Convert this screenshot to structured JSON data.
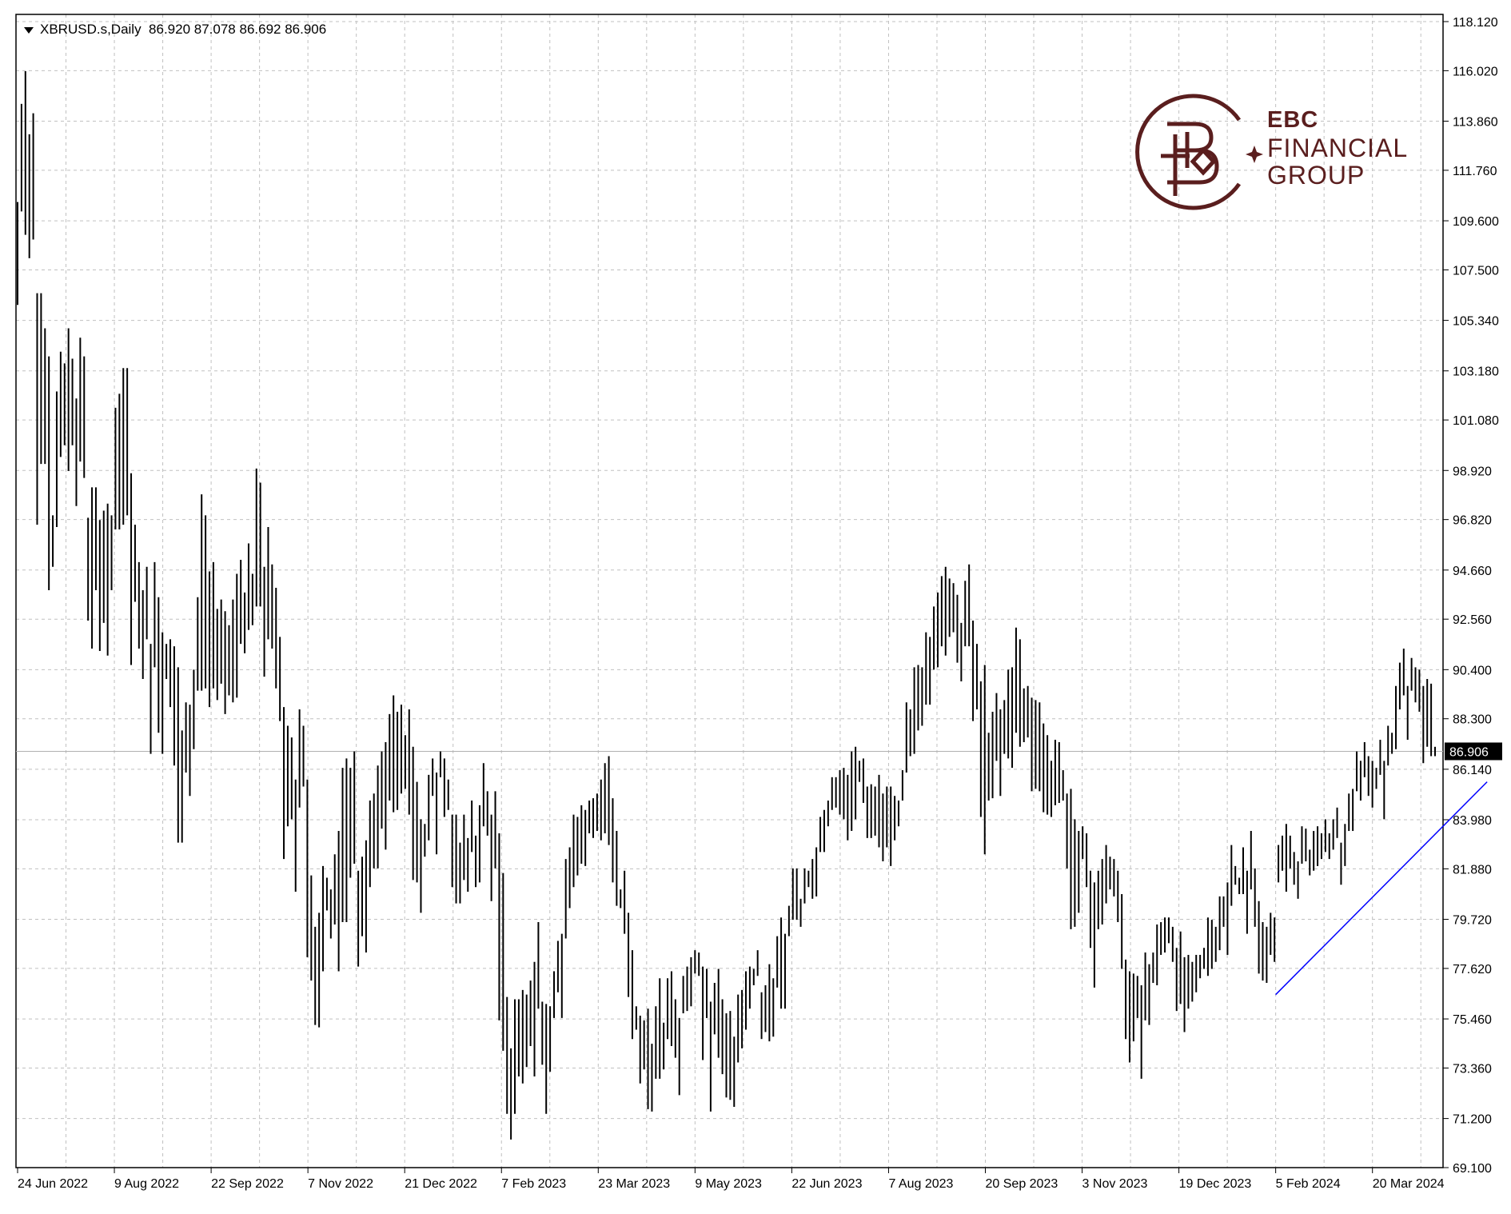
{
  "header": {
    "symbol": "XBRUSD.s,Daily",
    "ohlc": "86.920 87.078 86.692 86.906"
  },
  "logo": {
    "line1": "EBC",
    "line2": "FINANCIAL",
    "line3": "GROUP",
    "color": "#5a1e1e"
  },
  "colors": {
    "bars": "#000000",
    "grid": "#c0c0c0",
    "trendline": "#0000ff",
    "price_label_bg": "#000000"
  },
  "chart_data": {
    "type": "ohlc",
    "title": "",
    "xlabel": "",
    "ylabel": "",
    "ylim": [
      69.1,
      118.12
    ],
    "grid": true,
    "y_ticks": [
      "118.120",
      "116.020",
      "113.860",
      "111.760",
      "109.600",
      "107.500",
      "105.340",
      "103.180",
      "101.080",
      "98.920",
      "96.820",
      "94.660",
      "92.560",
      "90.400",
      "88.300",
      "86.140",
      "83.980",
      "81.880",
      "79.720",
      "77.620",
      "75.460",
      "73.360",
      "71.200",
      "69.100"
    ],
    "x_ticks": [
      "24 Jun 2022",
      "9 Aug 2022",
      "22 Sep 2022",
      "7 Nov 2022",
      "21 Dec 2022",
      "7 Feb 2023",
      "23 Mar 2023",
      "9 May 2023",
      "22 Jun 2023",
      "7 Aug 2023",
      "20 Sep 2023",
      "3 Nov 2023",
      "19 Dec 2023",
      "5 Feb 2024",
      "20 Mar 2024"
    ],
    "last_price": 86.906,
    "last_price_label": "86.906",
    "trendline": {
      "start": [
        "2024-02-05",
        76.5
      ],
      "end": [
        "2024-04-19",
        85.6
      ]
    },
    "bars": [
      [
        106.0,
        110.4
      ],
      [
        110.0,
        114.6
      ],
      [
        109.0,
        116.0
      ],
      [
        108.0,
        113.3
      ],
      [
        108.8,
        114.2
      ],
      [
        96.6,
        106.5
      ],
      [
        99.2,
        106.5
      ],
      [
        99.2,
        105.0
      ],
      [
        93.8,
        103.8
      ],
      [
        94.8,
        97.0
      ],
      [
        96.5,
        102.3
      ],
      [
        99.5,
        104.0
      ],
      [
        100.0,
        103.5
      ],
      [
        98.9,
        105.0
      ],
      [
        100.0,
        103.7
      ],
      [
        97.4,
        102.0
      ],
      [
        99.3,
        104.6
      ],
      [
        98.6,
        103.8
      ],
      [
        92.5,
        96.9
      ],
      [
        91.3,
        98.2
      ],
      [
        93.8,
        98.2
      ],
      [
        91.2,
        96.8
      ],
      [
        92.4,
        97.2
      ],
      [
        91.0,
        97.5
      ],
      [
        93.8,
        97.0
      ],
      [
        96.4,
        101.6
      ],
      [
        96.4,
        102.2
      ],
      [
        96.6,
        103.3
      ],
      [
        97.0,
        103.3
      ],
      [
        90.6,
        98.8
      ],
      [
        93.3,
        96.6
      ],
      [
        91.3,
        95.0
      ],
      [
        90.0,
        93.8
      ],
      [
        91.7,
        94.8
      ],
      [
        86.8,
        91.5
      ],
      [
        90.5,
        95.0
      ],
      [
        87.7,
        93.5
      ],
      [
        86.8,
        92.0
      ],
      [
        90.0,
        91.5
      ],
      [
        88.8,
        91.7
      ],
      [
        86.3,
        91.4
      ],
      [
        83.0,
        90.5
      ],
      [
        83.0,
        87.8
      ],
      [
        86.0,
        89.0
      ],
      [
        85.0,
        88.9
      ],
      [
        87.0,
        90.4
      ],
      [
        89.5,
        93.5
      ],
      [
        89.5,
        97.9
      ],
      [
        89.6,
        97.0
      ],
      [
        88.8,
        94.6
      ],
      [
        89.6,
        95.0
      ],
      [
        89.1,
        93.0
      ],
      [
        89.8,
        93.4
      ],
      [
        88.5,
        92.9
      ],
      [
        89.3,
        92.3
      ],
      [
        89.0,
        93.4
      ],
      [
        89.2,
        94.5
      ],
      [
        91.5,
        95.1
      ],
      [
        91.1,
        93.7
      ],
      [
        92.1,
        95.8
      ],
      [
        92.3,
        94.5
      ],
      [
        93.1,
        99.0
      ],
      [
        93.1,
        98.4
      ],
      [
        90.1,
        94.8
      ],
      [
        91.7,
        96.5
      ],
      [
        91.3,
        94.9
      ],
      [
        89.6,
        93.9
      ],
      [
        88.2,
        91.8
      ],
      [
        82.3,
        88.8
      ],
      [
        83.7,
        88.0
      ],
      [
        84.0,
        87.5
      ],
      [
        80.9,
        85.7
      ],
      [
        84.5,
        88.7
      ],
      [
        85.4,
        88.0
      ],
      [
        78.1,
        85.7
      ],
      [
        77.1,
        81.6
      ],
      [
        75.2,
        79.4
      ],
      [
        75.1,
        80.0
      ],
      [
        77.5,
        82.0
      ],
      [
        80.1,
        81.5
      ],
      [
        78.9,
        81.0
      ],
      [
        79.5,
        82.5
      ],
      [
        77.5,
        83.5
      ],
      [
        79.6,
        86.2
      ],
      [
        79.6,
        86.6
      ],
      [
        81.5,
        86.2
      ],
      [
        82.1,
        86.9
      ],
      [
        77.7,
        81.8
      ],
      [
        79.0,
        82.4
      ],
      [
        78.3,
        83.1
      ],
      [
        81.1,
        84.8
      ],
      [
        81.9,
        85.1
      ],
      [
        81.9,
        86.3
      ],
      [
        83.6,
        86.9
      ],
      [
        82.7,
        87.3
      ],
      [
        84.8,
        88.5
      ],
      [
        84.3,
        89.3
      ],
      [
        84.4,
        88.6
      ],
      [
        85.1,
        88.9
      ],
      [
        85.3,
        87.6
      ],
      [
        84.2,
        88.7
      ],
      [
        81.4,
        87.1
      ],
      [
        81.3,
        85.6
      ],
      [
        80.0,
        84.0
      ],
      [
        82.4,
        83.8
      ],
      [
        83.1,
        85.9
      ],
      [
        85.0,
        86.6
      ],
      [
        82.5,
        86.0
      ],
      [
        85.8,
        86.9
      ],
      [
        84.1,
        86.6
      ],
      [
        84.4,
        85.7
      ],
      [
        81.1,
        84.2
      ],
      [
        80.4,
        84.2
      ],
      [
        80.4,
        83.0
      ],
      [
        81.4,
        84.2
      ],
      [
        80.9,
        83.2
      ],
      [
        82.6,
        84.8
      ],
      [
        81.1,
        83.3
      ],
      [
        81.3,
        84.6
      ],
      [
        83.7,
        86.4
      ],
      [
        83.3,
        85.2
      ],
      [
        80.5,
        84.2
      ],
      [
        81.9,
        85.2
      ],
      [
        75.4,
        83.4
      ],
      [
        74.1,
        81.7
      ],
      [
        71.4,
        76.4
      ],
      [
        70.3,
        74.2
      ],
      [
        71.4,
        76.3
      ],
      [
        73.0,
        76.3
      ],
      [
        72.7,
        76.7
      ],
      [
        73.4,
        76.5
      ],
      [
        74.3,
        77.1
      ],
      [
        73.0,
        77.9
      ],
      [
        75.9,
        79.6
      ],
      [
        73.5,
        76.2
      ],
      [
        71.4,
        76.1
      ],
      [
        73.2,
        76.0
      ],
      [
        75.5,
        77.5
      ],
      [
        76.6,
        78.8
      ],
      [
        75.5,
        79.1
      ],
      [
        78.9,
        82.3
      ],
      [
        80.2,
        82.8
      ],
      [
        81.1,
        84.2
      ],
      [
        81.6,
        84.1
      ],
      [
        82.1,
        84.6
      ],
      [
        82.0,
        84.4
      ],
      [
        83.4,
        84.8
      ],
      [
        83.2,
        84.9
      ],
      [
        83.5,
        85.1
      ],
      [
        83.1,
        85.7
      ],
      [
        83.4,
        86.4
      ],
      [
        82.9,
        86.7
      ],
      [
        81.3,
        84.9
      ],
      [
        80.3,
        83.5
      ],
      [
        80.2,
        81.0
      ],
      [
        79.1,
        81.8
      ],
      [
        76.4,
        80.0
      ],
      [
        74.6,
        78.4
      ],
      [
        75.0,
        76.0
      ],
      [
        72.7,
        75.6
      ],
      [
        73.3,
        75.4
      ],
      [
        71.6,
        75.9
      ],
      [
        71.5,
        74.4
      ],
      [
        72.9,
        76.0
      ],
      [
        72.9,
        77.2
      ],
      [
        73.3,
        75.3
      ],
      [
        74.6,
        77.2
      ],
      [
        74.3,
        77.5
      ],
      [
        73.8,
        76.3
      ],
      [
        72.2,
        75.5
      ],
      [
        75.7,
        77.3
      ],
      [
        75.8,
        77.7
      ],
      [
        76.0,
        78.1
      ],
      [
        77.4,
        78.4
      ],
      [
        77.3,
        78.3
      ],
      [
        73.7,
        77.7
      ],
      [
        75.5,
        77.6
      ],
      [
        71.5,
        76.2
      ],
      [
        74.8,
        77.0
      ],
      [
        73.8,
        77.6
      ],
      [
        73.1,
        76.3
      ],
      [
        72.1,
        75.7
      ],
      [
        72.0,
        75.8
      ],
      [
        71.7,
        74.7
      ],
      [
        73.6,
        76.5
      ],
      [
        74.2,
        76.7
      ],
      [
        75.0,
        77.5
      ],
      [
        75.9,
        77.7
      ],
      [
        76.9,
        77.6
      ],
      [
        77.3,
        78.4
      ],
      [
        74.6,
        76.6
      ],
      [
        74.9,
        76.9
      ],
      [
        74.5,
        77.8
      ],
      [
        74.7,
        77.2
      ],
      [
        76.8,
        79.0
      ],
      [
        75.9,
        79.8
      ],
      [
        75.9,
        79.1
      ],
      [
        79.0,
        80.3
      ],
      [
        79.7,
        81.9
      ],
      [
        79.7,
        81.9
      ],
      [
        79.4,
        80.6
      ],
      [
        80.4,
        81.9
      ],
      [
        81.1,
        81.8
      ],
      [
        80.6,
        82.3
      ],
      [
        80.7,
        82.8
      ],
      [
        82.6,
        84.1
      ],
      [
        82.6,
        84.4
      ],
      [
        83.7,
        84.8
      ],
      [
        84.4,
        85.8
      ],
      [
        84.5,
        85.8
      ],
      [
        84.2,
        86.1
      ],
      [
        84.0,
        86.2
      ],
      [
        83.1,
        85.9
      ],
      [
        83.5,
        86.9
      ],
      [
        84.0,
        87.1
      ],
      [
        85.6,
        86.5
      ],
      [
        84.7,
        86.6
      ],
      [
        83.2,
        85.4
      ],
      [
        83.2,
        85.5
      ],
      [
        83.3,
        85.4
      ],
      [
        82.8,
        85.9
      ],
      [
        82.2,
        85.1
      ],
      [
        82.8,
        85.4
      ],
      [
        82.0,
        85.4
      ],
      [
        83.1,
        85.0
      ],
      [
        83.7,
        84.8
      ],
      [
        84.8,
        86.1
      ],
      [
        86.0,
        89.0
      ],
      [
        86.7,
        88.7
      ],
      [
        86.8,
        90.5
      ],
      [
        87.8,
        90.6
      ],
      [
        88.0,
        90.5
      ],
      [
        88.9,
        92.0
      ],
      [
        88.9,
        91.8
      ],
      [
        90.4,
        93.1
      ],
      [
        90.5,
        93.7
      ],
      [
        91.4,
        94.4
      ],
      [
        91.0,
        94.8
      ],
      [
        91.8,
        94.3
      ],
      [
        92.0,
        94.1
      ],
      [
        90.7,
        93.6
      ],
      [
        89.9,
        92.4
      ],
      [
        91.4,
        94.2
      ],
      [
        91.4,
        94.9
      ],
      [
        88.2,
        92.5
      ],
      [
        88.7,
        91.5
      ],
      [
        84.1,
        89.9
      ],
      [
        82.5,
        90.6
      ],
      [
        84.8,
        87.7
      ],
      [
        84.9,
        88.6
      ],
      [
        86.5,
        89.4
      ],
      [
        85.0,
        88.7
      ],
      [
        86.8,
        89.1
      ],
      [
        86.6,
        90.4
      ],
      [
        86.2,
        90.5
      ],
      [
        87.7,
        92.2
      ],
      [
        87.1,
        91.7
      ],
      [
        87.3,
        89.6
      ],
      [
        87.5,
        89.7
      ],
      [
        85.2,
        89.2
      ],
      [
        85.3,
        89.1
      ],
      [
        85.2,
        89.0
      ],
      [
        84.3,
        88.1
      ],
      [
        84.2,
        87.6
      ],
      [
        84.1,
        86.5
      ],
      [
        84.6,
        87.4
      ],
      [
        84.7,
        87.3
      ],
      [
        84.8,
        86.1
      ],
      [
        81.9,
        85.1
      ],
      [
        79.3,
        85.3
      ],
      [
        79.4,
        84.0
      ],
      [
        80.0,
        83.5
      ],
      [
        82.3,
        83.7
      ],
      [
        81.1,
        83.4
      ],
      [
        78.5,
        81.8
      ],
      [
        76.8,
        81.3
      ],
      [
        79.3,
        81.8
      ],
      [
        79.5,
        82.3
      ],
      [
        80.4,
        82.9
      ],
      [
        81.0,
        82.4
      ],
      [
        80.7,
        82.3
      ],
      [
        79.6,
        81.8
      ],
      [
        77.6,
        80.8
      ],
      [
        74.6,
        78.0
      ],
      [
        73.6,
        77.5
      ],
      [
        74.5,
        77.4
      ],
      [
        75.5,
        77.3
      ],
      [
        72.9,
        76.9
      ],
      [
        75.4,
        78.3
      ],
      [
        75.2,
        77.8
      ],
      [
        77.0,
        78.3
      ],
      [
        76.9,
        79.5
      ],
      [
        78.2,
        79.6
      ],
      [
        78.3,
        79.8
      ],
      [
        78.7,
        79.8
      ],
      [
        77.9,
        79.4
      ],
      [
        75.8,
        78.5
      ],
      [
        76.1,
        79.2
      ],
      [
        74.9,
        78.1
      ],
      [
        75.9,
        78.2
      ],
      [
        76.2,
        77.9
      ],
      [
        76.6,
        78.2
      ],
      [
        77.2,
        78.2
      ],
      [
        77.6,
        78.5
      ],
      [
        77.3,
        79.8
      ],
      [
        77.6,
        79.7
      ],
      [
        77.9,
        79.4
      ],
      [
        78.4,
        80.7
      ],
      [
        79.4,
        80.7
      ],
      [
        78.2,
        81.3
      ],
      [
        80.3,
        82.9
      ],
      [
        81.2,
        82.0
      ],
      [
        80.8,
        81.5
      ],
      [
        80.8,
        82.8
      ],
      [
        79.1,
        81.8
      ],
      [
        81.0,
        83.5
      ],
      [
        79.4,
        81.9
      ],
      [
        77.4,
        80.5
      ],
      [
        77.1,
        79.6
      ],
      [
        77.0,
        79.4
      ],
      [
        78.2,
        80.0
      ],
      [
        77.9,
        79.8
      ],
      [
        81.3,
        82.9
      ],
      [
        81.8,
        83.3
      ],
      [
        80.9,
        83.8
      ],
      [
        81.9,
        83.3
      ],
      [
        81.2,
        82.6
      ],
      [
        80.6,
        82.2
      ],
      [
        82.1,
        83.7
      ],
      [
        82.2,
        83.6
      ],
      [
        81.6,
        82.7
      ],
      [
        81.8,
        83.5
      ],
      [
        82.0,
        83.7
      ],
      [
        82.3,
        83.4
      ],
      [
        82.6,
        84.0
      ],
      [
        82.3,
        83.4
      ],
      [
        82.7,
        84.0
      ],
      [
        83.2,
        84.5
      ],
      [
        81.2,
        83.0
      ],
      [
        82.0,
        83.8
      ],
      [
        83.5,
        85.1
      ],
      [
        83.5,
        85.3
      ],
      [
        85.2,
        86.9
      ],
      [
        84.8,
        86.5
      ],
      [
        85.8,
        87.3
      ],
      [
        85.0,
        86.7
      ],
      [
        84.5,
        86.5
      ],
      [
        85.3,
        86.2
      ],
      [
        85.9,
        87.4
      ],
      [
        84.0,
        86.5
      ],
      [
        86.3,
        88.0
      ],
      [
        86.8,
        87.7
      ],
      [
        87.0,
        89.7
      ],
      [
        88.7,
        90.7
      ],
      [
        89.3,
        91.3
      ],
      [
        87.4,
        89.7
      ],
      [
        89.5,
        90.9
      ],
      [
        89.0,
        90.5
      ],
      [
        88.6,
        90.4
      ],
      [
        86.4,
        89.7
      ],
      [
        87.1,
        90.0
      ],
      [
        86.7,
        89.8
      ],
      [
        86.7,
        87.1
      ]
    ]
  }
}
